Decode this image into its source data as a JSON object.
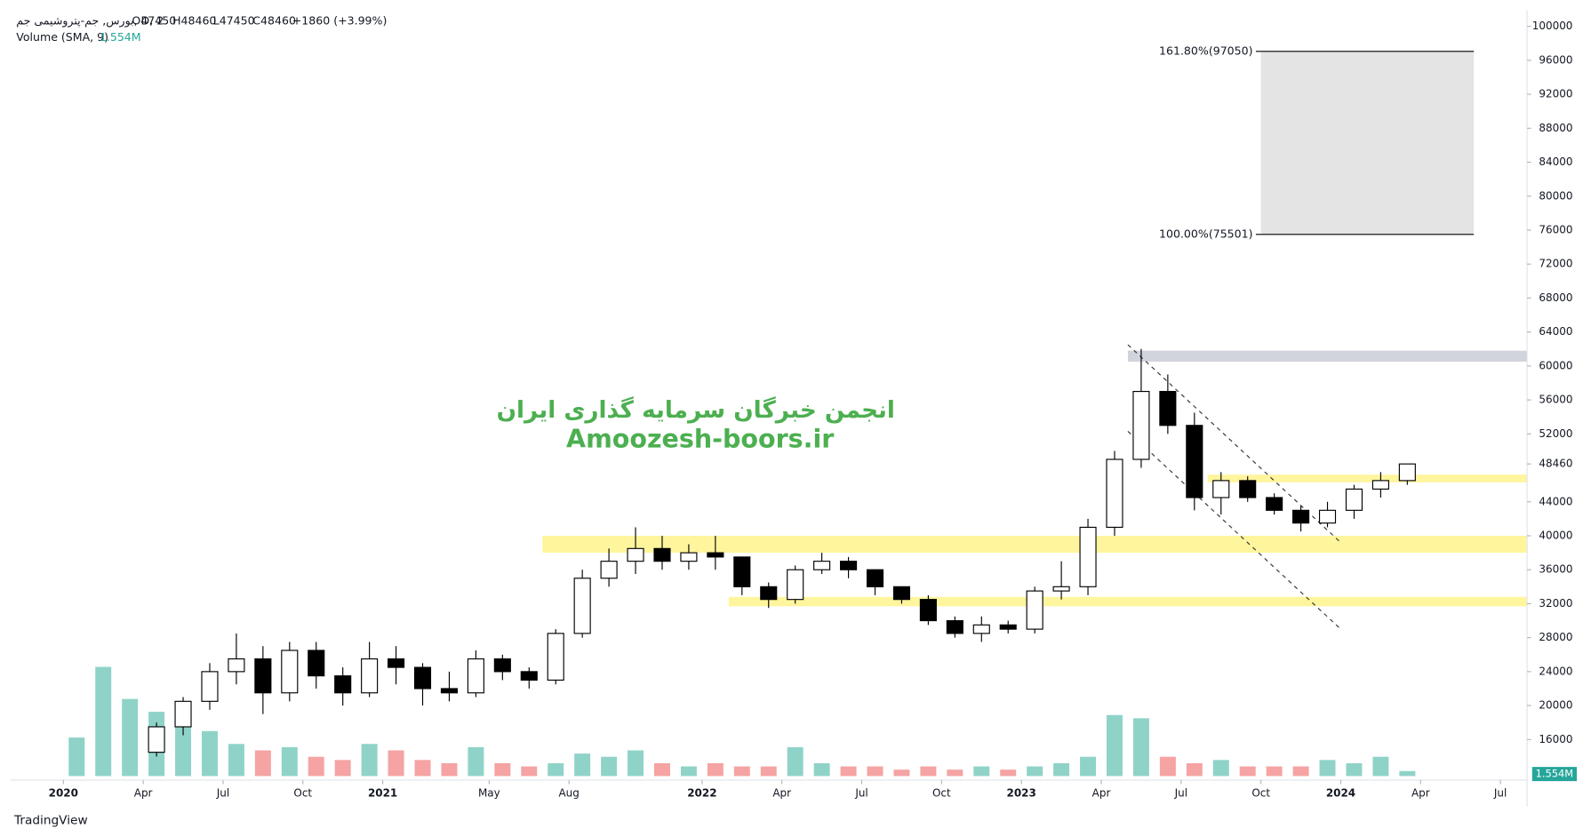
{
  "header": {
    "symbol": "بورس, جم-پتروشیمی جم, D, 2",
    "ohlc": [
      "O47450",
      "H48460",
      "L47450",
      "C48460",
      "+1860 (+3.99%)"
    ],
    "volume_title": "Volume (SMA, 9)",
    "brand": "TradingView"
  },
  "watermark": [
    "انجمن خبرگان سرمایه گذاری ایران",
    "Amoozesh-boors.ir"
  ],
  "chart_data": {
    "type": "candlestick",
    "x": [
      "2020-04",
      "2020-05",
      "2020-06",
      "2020-07",
      "2020-08",
      "2020-09",
      "2020-10",
      "2020-11",
      "2020-12",
      "2021-01",
      "2021-02",
      "2021-03",
      "2021-04",
      "2021-05",
      "2021-06",
      "2021-07",
      "2021-08",
      "2021-09",
      "2021-10",
      "2021-11",
      "2021-12",
      "2022-01",
      "2022-02",
      "2022-03",
      "2022-04",
      "2022-05",
      "2022-06",
      "2022-07",
      "2022-08",
      "2022-09",
      "2022-10",
      "2022-11",
      "2022-12",
      "2023-01",
      "2023-02",
      "2023-03",
      "2023-04",
      "2023-05",
      "2023-06",
      "2023-07",
      "2023-08",
      "2023-09",
      "2023-10",
      "2023-11",
      "2023-12",
      "2024-01",
      "2024-02",
      "2024-03"
    ],
    "open": [
      14500,
      17500,
      20500,
      24000,
      25500,
      21500,
      26500,
      23500,
      21500,
      25500,
      24500,
      22000,
      21500,
      25500,
      24000,
      23000,
      28500,
      35000,
      37000,
      38500,
      37000,
      38000,
      37500,
      34000,
      32500,
      36000,
      37000,
      36000,
      34000,
      32500,
      30000,
      28500,
      29500,
      29000,
      33500,
      34000,
      41000,
      49000,
      57000,
      53000,
      44500,
      46500,
      44500,
      43000,
      41500,
      43000,
      45500,
      46500
    ],
    "high": [
      18000,
      21000,
      25000,
      28500,
      27000,
      27500,
      27500,
      24500,
      27500,
      27000,
      25000,
      24000,
      26500,
      26000,
      24500,
      29000,
      36000,
      38500,
      41000,
      40000,
      39000,
      40000,
      37500,
      34500,
      36500,
      38000,
      37500,
      36000,
      34000,
      33000,
      30500,
      30500,
      30000,
      34000,
      37000,
      42000,
      50000,
      62000,
      59000,
      54500,
      47500,
      47000,
      45000,
      43500,
      44000,
      46000,
      47500,
      48460
    ],
    "low": [
      14000,
      16500,
      19500,
      22500,
      19000,
      20500,
      22000,
      20000,
      21000,
      22500,
      20000,
      20500,
      21000,
      23000,
      22000,
      22500,
      28000,
      34000,
      35500,
      36000,
      36000,
      36000,
      33000,
      31500,
      32000,
      35500,
      35000,
      33000,
      32000,
      29500,
      28000,
      27500,
      28500,
      28500,
      32500,
      33000,
      40000,
      48000,
      52000,
      43000,
      42500,
      44000,
      42500,
      40500,
      41000,
      42000,
      44500,
      46000
    ],
    "close": [
      17500,
      20500,
      24000,
      25500,
      21500,
      26500,
      23500,
      21500,
      25500,
      24500,
      22000,
      21500,
      25500,
      24000,
      23000,
      28500,
      35000,
      37000,
      38500,
      37000,
      38000,
      37500,
      34000,
      32500,
      36000,
      37000,
      36000,
      34000,
      32500,
      30000,
      28500,
      29500,
      29000,
      33500,
      34000,
      41000,
      49000,
      57000,
      53000,
      44500,
      46500,
      44500,
      43000,
      41500,
      43000,
      45500,
      46500,
      48460
    ],
    "up_color": "#ffffff",
    "down_color": "#000000",
    "edge_color": "#000000",
    "xlim": [
      "2019-11",
      "2024-08"
    ],
    "xticks": [
      {
        "value": "2020-01",
        "label": "2020"
      },
      {
        "value": "2020-04",
        "label": "Apr"
      },
      {
        "value": "2020-07",
        "label": "Jul"
      },
      {
        "value": "2020-10",
        "label": "Oct"
      },
      {
        "value": "2021-01",
        "label": "2021"
      },
      {
        "value": "2021-05",
        "label": "May"
      },
      {
        "value": "2021-08",
        "label": "Aug"
      },
      {
        "value": "2022-01",
        "label": "2022"
      },
      {
        "value": "2022-04",
        "label": "Apr"
      },
      {
        "value": "2022-07",
        "label": "Jul"
      },
      {
        "value": "2022-10",
        "label": "Oct"
      },
      {
        "value": "2023-01",
        "label": "2023"
      },
      {
        "value": "2023-04",
        "label": "Apr"
      },
      {
        "value": "2023-07",
        "label": "Jul"
      },
      {
        "value": "2023-10",
        "label": "Oct"
      },
      {
        "value": "2024-01",
        "label": "2024"
      },
      {
        "value": "2024-04",
        "label": "Apr"
      },
      {
        "value": "2024-07",
        "label": "Jul"
      }
    ],
    "ylim": [
      11700,
      101900
    ],
    "yticks": [
      16000,
      20000,
      24000,
      28000,
      32000,
      36000,
      40000,
      44000,
      48460,
      52000,
      56000,
      60000,
      64000,
      68000,
      72000,
      76000,
      80000,
      84000,
      88000,
      92000,
      96000,
      100000
    ],
    "volume": {
      "x": [
        "2020-01",
        "2020-02",
        "2020-03",
        "2020-04",
        "2020-05",
        "2020-06",
        "2020-07",
        "2020-08",
        "2020-09",
        "2020-10",
        "2020-11",
        "2020-12",
        "2021-01",
        "2021-02",
        "2021-03",
        "2021-04",
        "2021-05",
        "2021-06",
        "2021-07",
        "2021-08",
        "2021-09",
        "2021-10",
        "2021-11",
        "2021-12",
        "2022-01",
        "2022-02",
        "2022-03",
        "2022-04",
        "2022-05",
        "2022-06",
        "2022-07",
        "2022-08",
        "2022-09",
        "2022-10",
        "2022-11",
        "2022-12",
        "2023-01",
        "2023-02",
        "2023-03",
        "2023-04",
        "2023-05",
        "2023-06",
        "2023-07",
        "2023-08",
        "2023-09",
        "2023-10",
        "2023-11",
        "2023-12",
        "2024-01",
        "2024-02",
        "2024-03"
      ],
      "values": [
        12,
        34,
        24,
        20,
        22,
        14,
        10,
        8,
        9,
        6,
        5,
        10,
        8,
        5,
        4,
        9,
        4,
        3,
        4,
        7,
        6,
        8,
        4,
        3,
        4,
        3,
        3,
        9,
        4,
        3,
        3,
        2,
        3,
        2,
        3,
        2,
        3,
        4,
        6,
        19,
        18,
        6,
        4,
        5,
        3,
        3,
        3,
        5,
        4,
        6,
        1.554
      ],
      "label": "1.554M",
      "vlim": [
        0,
        60
      ],
      "up_color": "#8fd3c8",
      "down_color": "#f5a3a3"
    },
    "zones": [
      {
        "x": "2021-07",
        "y": [
          38000,
          40000
        ],
        "color": "#fff59d"
      },
      {
        "x": "2022-02",
        "y": [
          31700,
          32800
        ],
        "color": "#fff59d"
      },
      {
        "x": "2023-08",
        "y": [
          46300,
          47200
        ],
        "color": "#fff59d"
      },
      {
        "x": "2023-05",
        "y": [
          60500,
          61800
        ],
        "color": "#d1d4dc"
      }
    ],
    "fib": {
      "x": [
        "2023-10",
        "2024-06"
      ],
      "levels": [
        {
          "value": 97050,
          "label": "161.80%(97050)"
        },
        {
          "value": 75501,
          "label": "100.00%(75501)"
        }
      ],
      "color": "#e4e4e4"
    },
    "channels": [
      {
        "x": [
          "2023-05",
          "2024-01"
        ],
        "y": [
          62500,
          39200
        ]
      },
      {
        "x": [
          "2023-05",
          "2024-01"
        ],
        "y": [
          52300,
          29000
        ]
      }
    ]
  }
}
